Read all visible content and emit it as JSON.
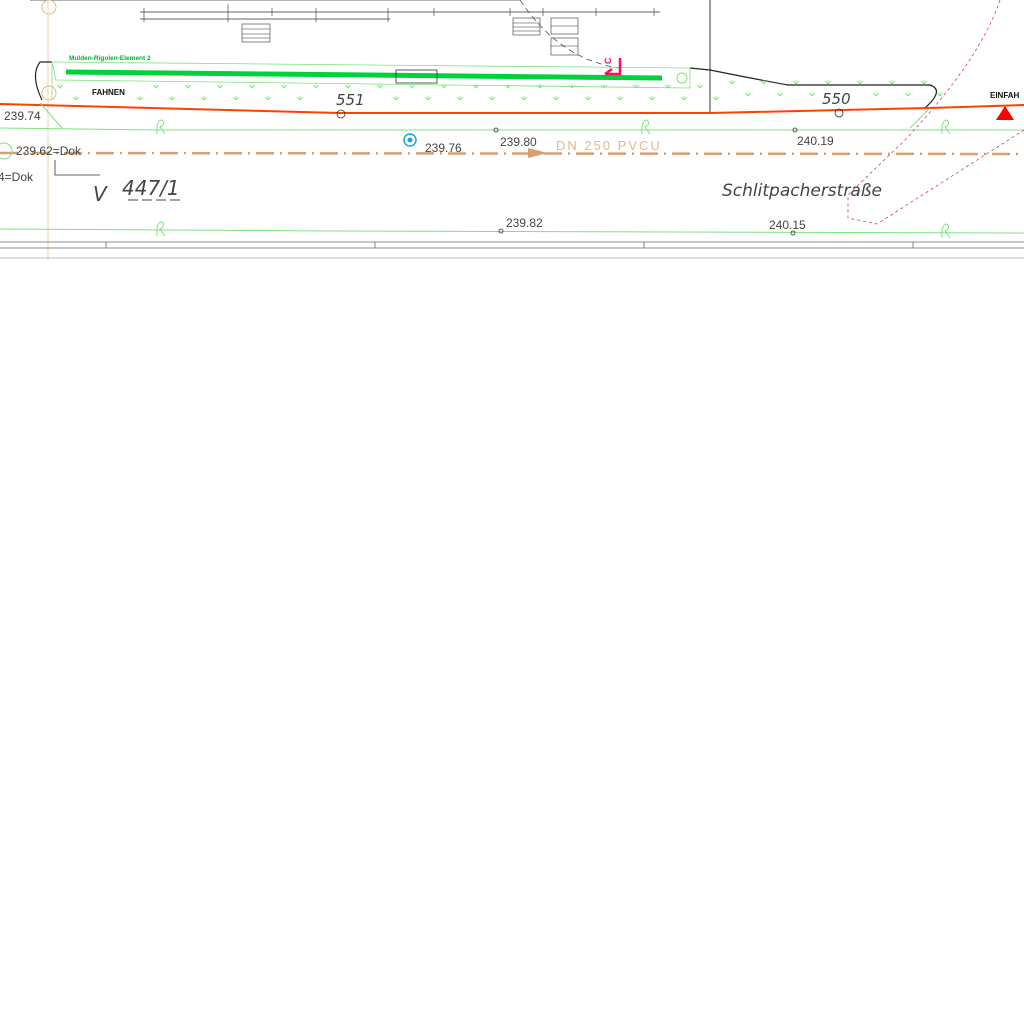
{
  "drawing": {
    "element_label": "Mulden-Rigolen-Element 2",
    "fahnen": "FAHNEN",
    "einfahrt": "EINFAH",
    "parcel_551": "551",
    "parcel_550": "550",
    "parcel_447": "447/1",
    "parcel_prefix": "V",
    "street_name": "Schlitpacherstraße",
    "pipe_label": "DN 250 PVCU",
    "marker_c": "C",
    "elevations": {
      "e1": "239.74",
      "e2": "239.62=Dok",
      "e3": "4=Dok",
      "e4": "239.76",
      "e5": "239.80",
      "e6": "240.19",
      "e7": "239.82",
      "e8": "240.15"
    },
    "colors": {
      "green": "#00d23c",
      "light_green": "#7de37d",
      "orange_line": "#ff4000",
      "pipe": "#d8a070",
      "red": "#ff0000",
      "pink_dashed": "#d04060",
      "blue_shaft": "#1aa8e0"
    }
  }
}
